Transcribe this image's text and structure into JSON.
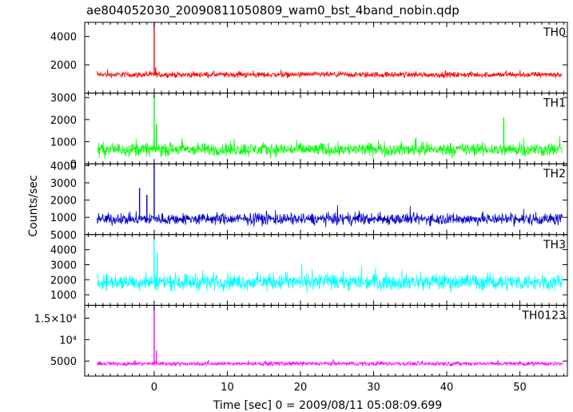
{
  "title": "ae804052030_20090811050809_wam0_bst_4band_nobin.qdp",
  "ylabel": "Counts/sec",
  "xlabel": "Time [sec] 0 = 2009/08/11 05:08:09.699",
  "chart_data": {
    "type": "line",
    "title": "ae804052030_20090811050809_wam0_bst_4band_nobin.qdp",
    "xlabel": "Time [sec] 0 = 2009/08/11 05:08:09.699",
    "ylabel": "Counts/sec",
    "xlim": [
      -9.5,
      56.5
    ],
    "xticks": [
      0,
      10,
      20,
      30,
      40,
      50
    ],
    "x_data_range": [
      -7.8,
      55.8
    ],
    "panels": [
      {
        "name": "TH0",
        "color": "#ff0000",
        "ylim": [
          0,
          5000
        ],
        "yticks": [
          2000,
          4000
        ],
        "ytick_labels": [
          "2000",
          "4000"
        ],
        "series": {
          "baseline": 1300,
          "noise_amplitude": 300,
          "features": [
            {
              "x": 0.0,
              "y": 5000
            },
            {
              "x": 0.2,
              "y": 1800
            }
          ]
        }
      },
      {
        "name": "TH1",
        "color": "#00ff00",
        "ylim": [
          0,
          3200
        ],
        "yticks": [
          0,
          1000,
          2000,
          3000
        ],
        "ytick_labels": [
          "0",
          "1000",
          "2000",
          "3000"
        ],
        "series": {
          "baseline": 650,
          "noise_amplitude": 450,
          "features": [
            {
              "x": 0.0,
              "y": 3200
            },
            {
              "x": 0.3,
              "y": 1800
            },
            {
              "x": 47.8,
              "y": 2100
            }
          ]
        }
      },
      {
        "name": "TH2",
        "color": "#0000cc",
        "ylim": [
          0,
          4100
        ],
        "yticks": [
          1000,
          2000,
          3000,
          4000
        ],
        "ytick_labels": [
          "1000",
          "2000",
          "3000",
          "4000"
        ],
        "series": {
          "baseline": 900,
          "noise_amplitude": 500,
          "features": [
            {
              "x": 0.0,
              "y": 4100
            },
            {
              "x": -2.0,
              "y": 2700
            },
            {
              "x": -1.0,
              "y": 2300
            }
          ]
        }
      },
      {
        "name": "TH3",
        "color": "#00ffff",
        "ylim": [
          300,
          5000
        ],
        "yticks": [
          1000,
          2000,
          3000,
          4000,
          5000
        ],
        "ytick_labels": [
          "1000",
          "2000",
          "3000",
          "4000",
          "5000"
        ],
        "series": {
          "baseline": 1850,
          "noise_amplitude": 800,
          "features": [
            {
              "x": 0.0,
              "y": 5000
            },
            {
              "x": 0.4,
              "y": 3800
            }
          ]
        }
      },
      {
        "name": "TH0123",
        "color": "#ff00ff",
        "ylim": [
          1500,
          18000
        ],
        "yticks": [
          5000,
          10000,
          15000
        ],
        "ytick_labels": [
          "5000",
          "10⁴",
          "1.5×10⁴"
        ],
        "series": {
          "baseline": 4400,
          "noise_amplitude": 700,
          "features": [
            {
              "x": 0.0,
              "y": 18000
            },
            {
              "x": 0.3,
              "y": 7500
            }
          ]
        }
      }
    ]
  }
}
